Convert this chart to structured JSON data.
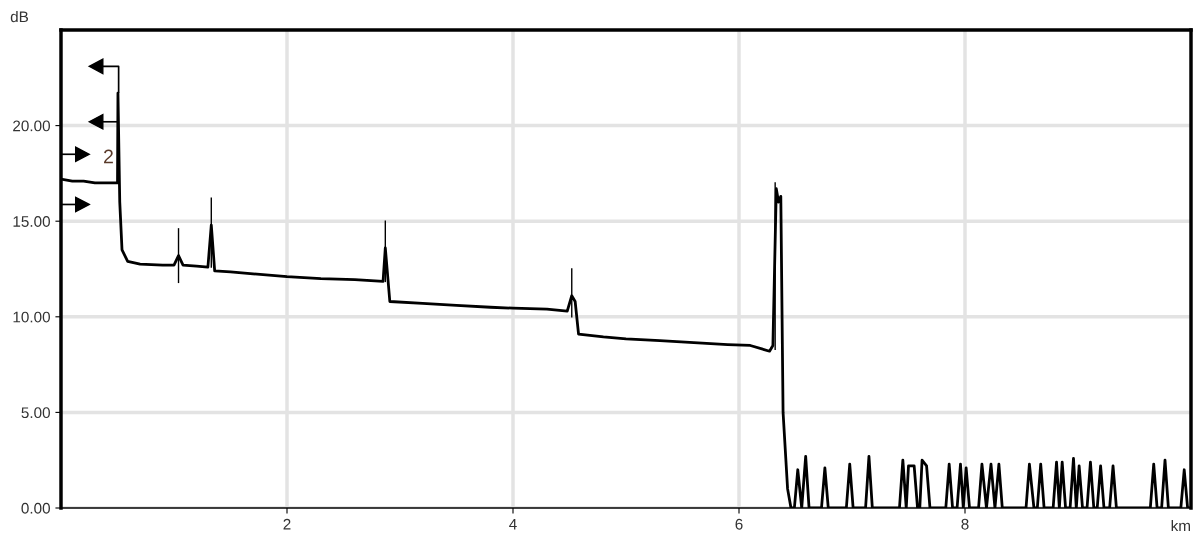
{
  "chart_data": {
    "type": "line",
    "xlabel": "km",
    "ylabel": "dB",
    "xlim": [
      0,
      10
    ],
    "ylim": [
      0,
      25
    ],
    "xticks": [
      2,
      4,
      6,
      8
    ],
    "yticks": [
      {
        "value": 0,
        "label": "0.00"
      },
      {
        "value": 5,
        "label": "5.00"
      },
      {
        "value": 10,
        "label": "10.00"
      },
      {
        "value": 15,
        "label": "15.00"
      },
      {
        "value": 20,
        "label": "20.00"
      }
    ],
    "grid": true,
    "legend": false,
    "marker": "none",
    "line_style": "solid",
    "annotations": [
      "2"
    ],
    "series": [
      {
        "color": "#000000",
        "x": [
          0,
          0.1,
          0.2,
          0.3,
          0.4,
          0.5,
          0.504,
          0.52,
          0.54,
          0.59,
          0.7,
          0.9,
          1.0,
          1.04,
          1.08,
          1.2,
          1.3,
          1.33,
          1.36,
          1.5,
          1.7,
          2.0,
          2.3,
          2.6,
          2.85,
          2.87,
          2.91,
          3.2,
          3.5,
          3.8,
          4.0,
          4.3,
          4.48,
          4.52,
          4.55,
          4.58,
          4.8,
          5.0,
          5.3,
          5.6,
          5.9,
          6.1,
          6.27,
          6.3,
          6.33,
          6.35,
          6.37,
          6.39,
          6.43,
          6.46,
          6.49,
          6.52,
          6.555,
          6.59,
          6.62,
          6.73,
          6.76,
          6.79,
          6.95,
          6.98,
          7.01,
          7.12,
          7.15,
          7.18,
          7.42,
          7.45,
          7.48,
          7.5,
          7.55,
          7.58,
          7.6,
          7.62,
          7.66,
          7.69,
          7.83,
          7.86,
          7.89,
          7.93,
          7.96,
          7.985,
          8.01,
          8.04,
          8.12,
          8.15,
          8.19,
          8.23,
          8.265,
          8.3,
          8.33,
          8.54,
          8.57,
          8.61,
          8.64,
          8.67,
          8.7,
          8.78,
          8.81,
          8.835,
          8.86,
          8.89,
          8.93,
          8.96,
          8.985,
          9.01,
          9.04,
          9.08,
          9.11,
          9.14,
          9.17,
          9.2,
          9.23,
          9.28,
          9.31,
          9.34,
          9.64,
          9.67,
          9.7,
          9.74,
          9.77,
          9.8,
          9.91,
          9.94,
          9.97,
          10.0
        ],
        "values": [
          17.2,
          17.1,
          17.1,
          17.0,
          17.0,
          17.0,
          21.7,
          16,
          13.5,
          12.9,
          12.75,
          12.7,
          12.7,
          13.2,
          12.7,
          12.65,
          12.6,
          14.8,
          12.4,
          12.35,
          12.25,
          12.1,
          12.0,
          11.95,
          11.85,
          13.6,
          10.8,
          10.7,
          10.6,
          10.5,
          10.45,
          10.4,
          10.3,
          11.1,
          10.8,
          9.1,
          8.95,
          8.85,
          8.75,
          8.65,
          8.55,
          8.5,
          8.2,
          8.5,
          16.7,
          16.0,
          16.3,
          5.0,
          1.0,
          0,
          0,
          2.0,
          0,
          2.7,
          0,
          0,
          2.1,
          0,
          0,
          2.3,
          0,
          0,
          2.7,
          0,
          0,
          2.5,
          0,
          2.2,
          2.2,
          0,
          0,
          2.5,
          2.2,
          0,
          0,
          2.3,
          0,
          0,
          2.3,
          0,
          2.1,
          0,
          0,
          2.3,
          0,
          2.3,
          0,
          2.3,
          0,
          0,
          2.3,
          0,
          0,
          2.3,
          0,
          0,
          2.4,
          0,
          2.4,
          0,
          0,
          2.6,
          0,
          2.2,
          0,
          0,
          2.4,
          0,
          0,
          2.2,
          0,
          0,
          2.2,
          0,
          0,
          2.3,
          0,
          0,
          2.5,
          0,
          0,
          2.0,
          0,
          0
        ]
      },
      {
        "color": "#000000",
        "x": [
          1.04,
          1.04
        ],
        "values": [
          11.8,
          14.6
        ]
      },
      {
        "color": "#000000",
        "x": [
          1.33,
          1.33
        ],
        "values": [
          12.6,
          16.2
        ]
      },
      {
        "color": "#000000",
        "x": [
          2.87,
          2.87
        ],
        "values": [
          11.85,
          15.0
        ]
      },
      {
        "color": "#000000",
        "x": [
          4.52,
          4.52
        ],
        "values": [
          10.0,
          12.5
        ]
      },
      {
        "color": "#000000",
        "x": [
          6.32,
          6.32
        ],
        "values": [
          8.3,
          17.0
        ]
      }
    ]
  }
}
